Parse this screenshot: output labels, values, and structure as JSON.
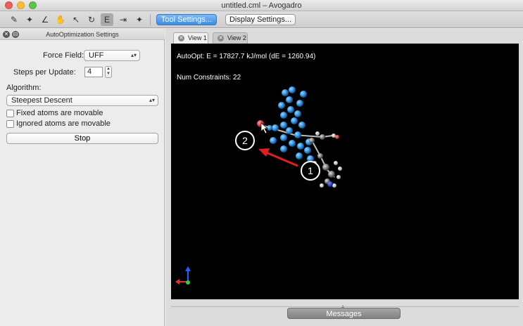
{
  "window": {
    "title": "untitled.cml – Avogadro"
  },
  "toolbar": {
    "tools": [
      {
        "icon": "draw-pencil-icon",
        "glyph": "✎"
      },
      {
        "icon": "navigate-icon",
        "glyph": "✦"
      },
      {
        "icon": "measure-icon",
        "glyph": "∠"
      },
      {
        "icon": "manipulate-hand-icon",
        "glyph": "✋"
      },
      {
        "icon": "select-arrow-icon",
        "glyph": "↖"
      },
      {
        "icon": "bond-centric-icon",
        "glyph": "↻"
      },
      {
        "icon": "autooptimize-icon",
        "glyph": "E"
      },
      {
        "icon": "align-icon",
        "glyph": "⇥"
      },
      {
        "icon": "extra-tool-icon",
        "glyph": "✦"
      }
    ],
    "tool_settings_label": "Tool Settings...",
    "display_settings_label": "Display Settings..."
  },
  "panel": {
    "title": "AutoOptimization Settings",
    "force_field_label": "Force Field:",
    "force_field_value": "UFF",
    "steps_label": "Steps per Update:",
    "steps_value": "4",
    "algorithm_label": "Algorithm:",
    "algorithm_value": "Steepest Descent",
    "fixed_atoms_label": "Fixed atoms are movable",
    "ignored_atoms_label": "Ignored atoms are movable",
    "stop_label": "Stop"
  },
  "tabs": [
    {
      "label": "View 1",
      "active": true
    },
    {
      "label": "View 2",
      "active": false
    }
  ],
  "viewport": {
    "energy_text": "AutoOpt: E = 17827.7 kJ/mol (dE = 1260.94)",
    "constraints_text": "Num Constraints: 22",
    "annotations": [
      "1",
      "2"
    ]
  },
  "messages_label": "Messages",
  "colors": {
    "accent_button": "#3d8ee3",
    "viewport_bg": "#000000",
    "atom_blue": "#2f8fdc",
    "arrow_red": "#e02020"
  }
}
